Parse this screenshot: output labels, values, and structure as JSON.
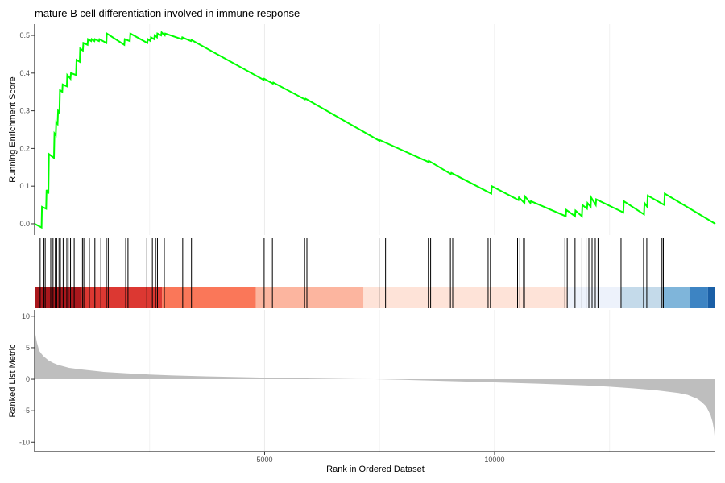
{
  "chart_data": {
    "title": "mature B cell differentiation involved in immune response",
    "xlabel": "Rank in Ordered Dataset",
    "xlim": [
      0,
      14800
    ],
    "x_ticks": [
      5000,
      10000
    ],
    "x_tick_labels": [
      "5000",
      "10000"
    ],
    "grid": true,
    "panels": [
      {
        "type": "line",
        "ylabel": "Running Enrichment Score",
        "ylim": [
          -0.03,
          0.53
        ],
        "y_ticks": [
          0.0,
          0.1,
          0.2,
          0.3,
          0.4,
          0.5
        ],
        "y_tick_labels": [
          "0.0",
          "0.1",
          "0.2",
          "0.3",
          "0.4",
          "0.5"
        ],
        "color": "#00FF00",
        "series": [
          {
            "x": [
              0,
              150,
              160,
              250,
              260,
              300,
              310,
              420,
              430,
              460,
              470,
              500,
              510,
              540,
              550,
              600,
              610,
              700,
              710,
              780,
              790,
              900,
              910,
              980,
              990,
              1050,
              1060,
              1150,
              1160,
              1230,
              1240,
              1300,
              1310,
              1400,
              1410,
              1560,
              1570,
              1950,
              1960,
              2070,
              2080,
              2450,
              2460,
              2520,
              2530,
              2600,
              2610,
              2660,
              2670,
              2750,
              2760,
              2830,
              2840,
              3200,
              3210,
              3400,
              3410,
              4980,
              4990,
              5180,
              5190,
              5880,
              5890,
              7500,
              7510,
              8560,
              8570,
              9050,
              9060,
              9930,
              9940,
              10520,
              10530,
              10650,
              10660,
              10780,
              10790,
              11550,
              11560,
              11750,
              11760,
              11900,
              11910,
              12010,
              12020,
              12090,
              12100,
              12200,
              12210,
              12800,
              12810,
              13250,
              13260,
              13320,
              13330,
              13690,
              13700,
              14800
            ],
            "y": [
              0.0,
              -0.01,
              0.045,
              0.04,
              0.09,
              0.08,
              0.185,
              0.175,
              0.24,
              0.235,
              0.27,
              0.265,
              0.3,
              0.295,
              0.355,
              0.35,
              0.37,
              0.365,
              0.395,
              0.385,
              0.4,
              0.395,
              0.435,
              0.43,
              0.465,
              0.46,
              0.48,
              0.475,
              0.49,
              0.485,
              0.49,
              0.485,
              0.49,
              0.485,
              0.49,
              0.48,
              0.505,
              0.475,
              0.49,
              0.485,
              0.505,
              0.48,
              0.49,
              0.485,
              0.495,
              0.49,
              0.5,
              0.495,
              0.505,
              0.5,
              0.508,
              0.5,
              0.505,
              0.49,
              0.495,
              0.485,
              0.488,
              0.382,
              0.385,
              0.372,
              0.375,
              0.33,
              0.332,
              0.22,
              0.222,
              0.164,
              0.167,
              0.132,
              0.135,
              0.08,
              0.1,
              0.063,
              0.07,
              0.055,
              0.073,
              0.055,
              0.06,
              0.02,
              0.037,
              0.02,
              0.035,
              0.02,
              0.05,
              0.04,
              0.055,
              0.045,
              0.07,
              0.05,
              0.065,
              0.03,
              0.06,
              0.025,
              0.055,
              0.045,
              0.075,
              0.05,
              0.08,
              0.0
            ]
          }
        ]
      },
      {
        "type": "rug",
        "hits_x": [
          120,
          200,
          230,
          350,
          400,
          450,
          480,
          530,
          560,
          620,
          700,
          730,
          780,
          860,
          1040,
          1070,
          1190,
          1270,
          1310,
          1440,
          1560,
          1600,
          1980,
          2030,
          2440,
          2560,
          2630,
          2670,
          2820,
          3220,
          3410,
          4990,
          5170,
          5870,
          5920,
          7490,
          7630,
          8560,
          8610,
          9040,
          9090,
          9860,
          9910,
          10500,
          10550,
          10630,
          10650,
          11530,
          11580,
          11750,
          11900,
          11990,
          12050,
          12120,
          12190,
          12250,
          12750,
          13240,
          13310,
          13640,
          13670
        ],
        "gradient_bands": [
          {
            "from": 0,
            "to": 1000,
            "color": "#A9171C"
          },
          {
            "from": 1000,
            "to": 2770,
            "color": "#DC3832"
          },
          {
            "from": 2770,
            "to": 4810,
            "color": "#FA7759"
          },
          {
            "from": 4810,
            "to": 7150,
            "color": "#FCB59F"
          },
          {
            "from": 7150,
            "to": 11580,
            "color": "#FEE3D8"
          },
          {
            "from": 11580,
            "to": 12750,
            "color": "#EDF2FB"
          },
          {
            "from": 12750,
            "to": 13660,
            "color": "#C4DAEA"
          },
          {
            "from": 13660,
            "to": 14240,
            "color": "#7FB5DA"
          },
          {
            "from": 14240,
            "to": 14640,
            "color": "#3D84C3"
          },
          {
            "from": 14640,
            "to": 14800,
            "color": "#1A5FA6"
          }
        ]
      },
      {
        "type": "area",
        "ylabel": "Ranked List Metric",
        "ylim": [
          -11.5,
          11
        ],
        "y_ticks": [
          10,
          5,
          0,
          -5,
          -10
        ],
        "y_tick_labels": [
          "10",
          "5",
          "0",
          "-5",
          "-10"
        ],
        "color": "#BEBEBE",
        "series": [
          {
            "x": [
              0,
              20,
              50,
              100,
              150,
              200,
              300,
              400,
              500,
              750,
              1000,
              1500,
              2000,
              2500,
              3000,
              4000,
              5000,
              6000,
              7000,
              7400,
              8000,
              9000,
              10000,
              11000,
              12000,
              12500,
              13000,
              13500,
              14000,
              14200,
              14400,
              14500,
              14600,
              14650,
              14700,
              14740,
              14770,
              14790,
              14800
            ],
            "y": [
              8.5,
              7.0,
              5.8,
              4.5,
              4.0,
              3.6,
              3.0,
              2.6,
              2.3,
              1.8,
              1.55,
              1.15,
              0.92,
              0.75,
              0.6,
              0.4,
              0.25,
              0.12,
              0.02,
              0.0,
              -0.1,
              -0.3,
              -0.5,
              -0.72,
              -1.0,
              -1.2,
              -1.45,
              -1.75,
              -2.2,
              -2.5,
              -3.1,
              -3.6,
              -4.3,
              -5.0,
              -5.8,
              -6.8,
              -8.0,
              -9.5,
              -10.8
            ]
          }
        ]
      }
    ]
  }
}
